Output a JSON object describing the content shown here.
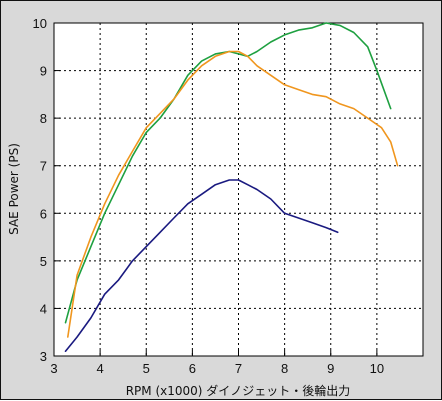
{
  "chart_data": {
    "type": "line",
    "title": "",
    "xlabel": "RPM (x1000) ダイノジェット・後輪出力",
    "ylabel": "SAE Power (PS)",
    "xlim": [
      3,
      11
    ],
    "ylim": [
      3,
      10
    ],
    "xticks": [
      "3",
      "4",
      "5",
      "6",
      "7",
      "8",
      "9",
      "10"
    ],
    "yticks": [
      "3",
      "4",
      "5",
      "6",
      "7",
      "8",
      "9",
      "10"
    ],
    "grid": true,
    "legend": "none",
    "series": [
      {
        "color": "#1ea040",
        "x": [
          3.25,
          3.5,
          3.8,
          4.1,
          4.4,
          4.7,
          5.0,
          5.3,
          5.6,
          5.9,
          6.2,
          6.5,
          6.8,
          7.0,
          7.2,
          7.4,
          7.7,
          8.0,
          8.3,
          8.6,
          8.9,
          9.2,
          9.5,
          9.8,
          10.0,
          10.3
        ],
        "y": [
          3.7,
          4.6,
          5.3,
          6.0,
          6.6,
          7.2,
          7.7,
          8.0,
          8.4,
          8.9,
          9.2,
          9.35,
          9.4,
          9.35,
          9.3,
          9.4,
          9.6,
          9.75,
          9.85,
          9.9,
          10.0,
          9.95,
          9.8,
          9.5,
          9.0,
          8.2
        ]
      },
      {
        "color": "#f0961e",
        "x": [
          3.3,
          3.5,
          3.8,
          4.1,
          4.4,
          4.7,
          5.0,
          5.3,
          5.6,
          5.9,
          6.2,
          6.5,
          6.8,
          7.0,
          7.2,
          7.4,
          7.7,
          8.0,
          8.3,
          8.6,
          8.9,
          9.2,
          9.5,
          9.8,
          10.1,
          10.3,
          10.45
        ],
        "y": [
          3.4,
          4.7,
          5.5,
          6.2,
          6.8,
          7.3,
          7.8,
          8.1,
          8.4,
          8.8,
          9.1,
          9.3,
          9.4,
          9.4,
          9.3,
          9.1,
          8.9,
          8.7,
          8.6,
          8.5,
          8.45,
          8.3,
          8.2,
          8.0,
          7.8,
          7.5,
          7.0
        ]
      },
      {
        "color": "#1a1a80",
        "x": [
          3.25,
          3.5,
          3.8,
          4.1,
          4.4,
          4.7,
          5.0,
          5.3,
          5.6,
          5.9,
          6.2,
          6.5,
          6.8,
          7.0,
          7.2,
          7.4,
          7.7,
          8.0,
          8.3,
          8.6,
          8.9,
          9.15
        ],
        "y": [
          3.1,
          3.4,
          3.8,
          4.3,
          4.6,
          5.0,
          5.3,
          5.6,
          5.9,
          6.2,
          6.4,
          6.6,
          6.7,
          6.7,
          6.6,
          6.5,
          6.3,
          6.0,
          5.9,
          5.8,
          5.7,
          5.6
        ]
      }
    ]
  }
}
